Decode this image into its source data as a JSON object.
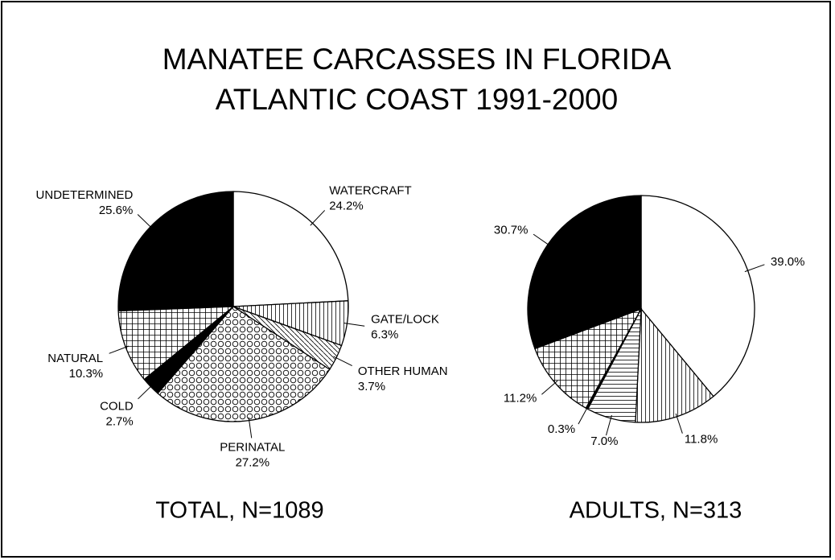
{
  "title_lines": [
    "MANATEE CARCASSES IN FLORIDA",
    "ATLANTIC COAST 1991-2000"
  ],
  "chart_data": [
    {
      "type": "pie",
      "caption": "TOTAL, N=1089",
      "categories": [
        "WATERCRAFT",
        "GATE/LOCK",
        "OTHER HUMAN",
        "PERINATAL",
        "COLD",
        "NATURAL",
        "UNDETERMINED"
      ],
      "values": [
        24.2,
        6.3,
        3.7,
        27.2,
        2.7,
        10.3,
        25.6
      ],
      "value_labels": [
        "24.2%",
        "6.3%",
        "3.7%",
        "27.2%",
        "2.7%",
        "10.3%",
        "25.6%"
      ],
      "fills": [
        "white",
        "vertical",
        "diagonal",
        "circles",
        "black",
        "grid",
        "black"
      ]
    },
    {
      "type": "pie",
      "caption": "ADULTS, N=313",
      "values": [
        39.0,
        11.8,
        7.0,
        0.3,
        11.2,
        30.7
      ],
      "value_labels": [
        "39.0%",
        "11.8%",
        "7.0%",
        "0.3%",
        "11.2%",
        "30.7%"
      ],
      "fills": [
        "white",
        "vertical",
        "horizontal",
        "black",
        "grid",
        "black"
      ]
    }
  ]
}
